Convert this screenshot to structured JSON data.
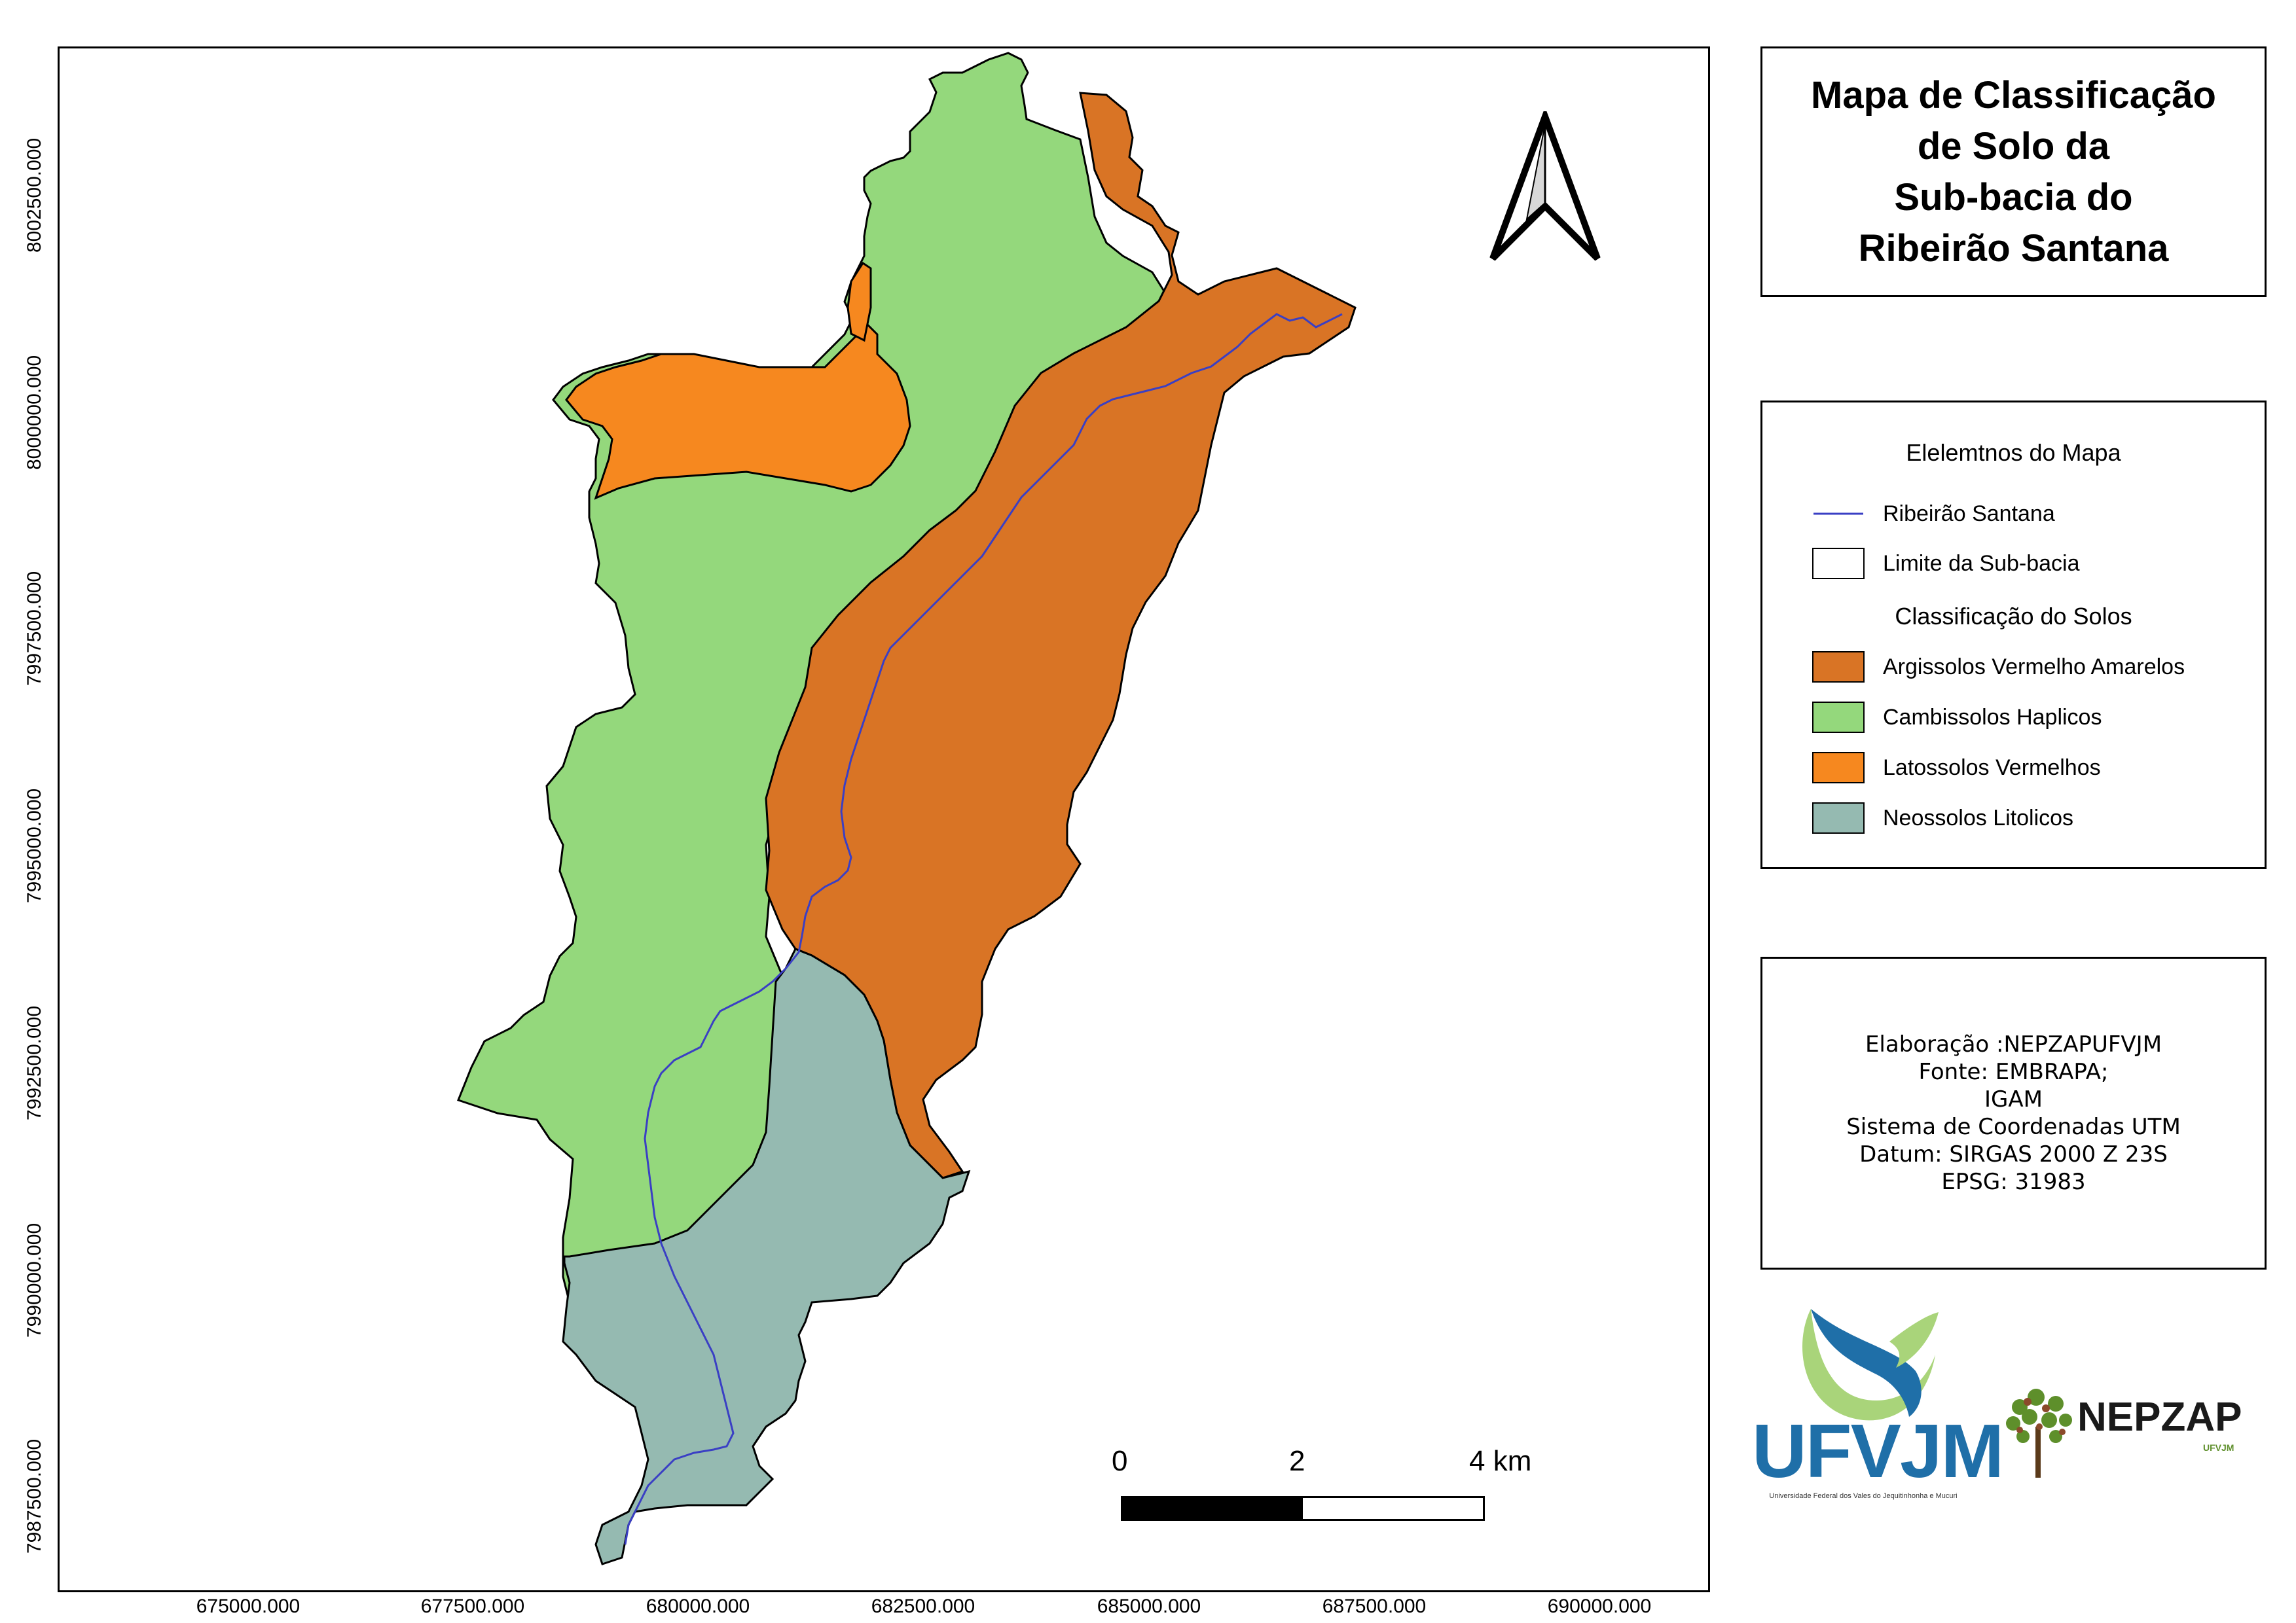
{
  "map": {
    "x_ticks": [
      "675000.000",
      "677500.000",
      "680000.000",
      "682500.000",
      "685000.000",
      "687500.000",
      "690000.000"
    ],
    "y_ticks": [
      "8002500.000",
      "8000000.000",
      "7997500.000",
      "7995000.000",
      "7992500.000",
      "7990000.000",
      "7987500.000"
    ],
    "colors": {
      "argissolos": "#d97425",
      "cambissolos": "#94d87c",
      "latossolos": "#f6881f",
      "neossolos": "#95bab1",
      "river": "#3a3fc4",
      "outline": "#000000"
    }
  },
  "north_arrow": {
    "icon": "north-arrow-icon"
  },
  "scale_bar": {
    "label_0": "0",
    "label_2": "2",
    "label_4": "4 km"
  },
  "title": {
    "line1": "Mapa de Classificação",
    "line2": "de Solo da",
    "line3": "Sub-bacia do",
    "line4": "Ribeirão Santana"
  },
  "legend": {
    "heading": "Elelemtnos do Mapa",
    "river_label": "Ribeirão Santana",
    "boundary_label": "Limite da Sub-bacia",
    "soils_heading": "Classificação do Solos",
    "soils": [
      {
        "label": "Argissolos Vermelho Amarelos",
        "color": "#d97425"
      },
      {
        "label": "Cambissolos Haplicos",
        "color": "#94d87c"
      },
      {
        "label": "Latossolos Vermelhos",
        "color": "#f6881f"
      },
      {
        "label": "Neossolos Litolicos",
        "color": "#95bab1"
      }
    ]
  },
  "credits": {
    "line1": "Elaboração :NEPZAPUFVJM",
    "line2": "Fonte: EMBRAPA;",
    "line3": "IGAM",
    "line4": "Sistema de Coordenadas UTM",
    "line5": "Datum: SIRGAS 2000 Z 23S",
    "line6": "EPSG: 31983"
  },
  "logos": {
    "ufvjm_name": "UFVJM",
    "ufvjm_subtitle": "Universidade Federal dos Vales do Jequitinhonha e Mucuri",
    "nepzap_name": "NEPZAP",
    "nepzap_subtitle": "UFVJM"
  }
}
